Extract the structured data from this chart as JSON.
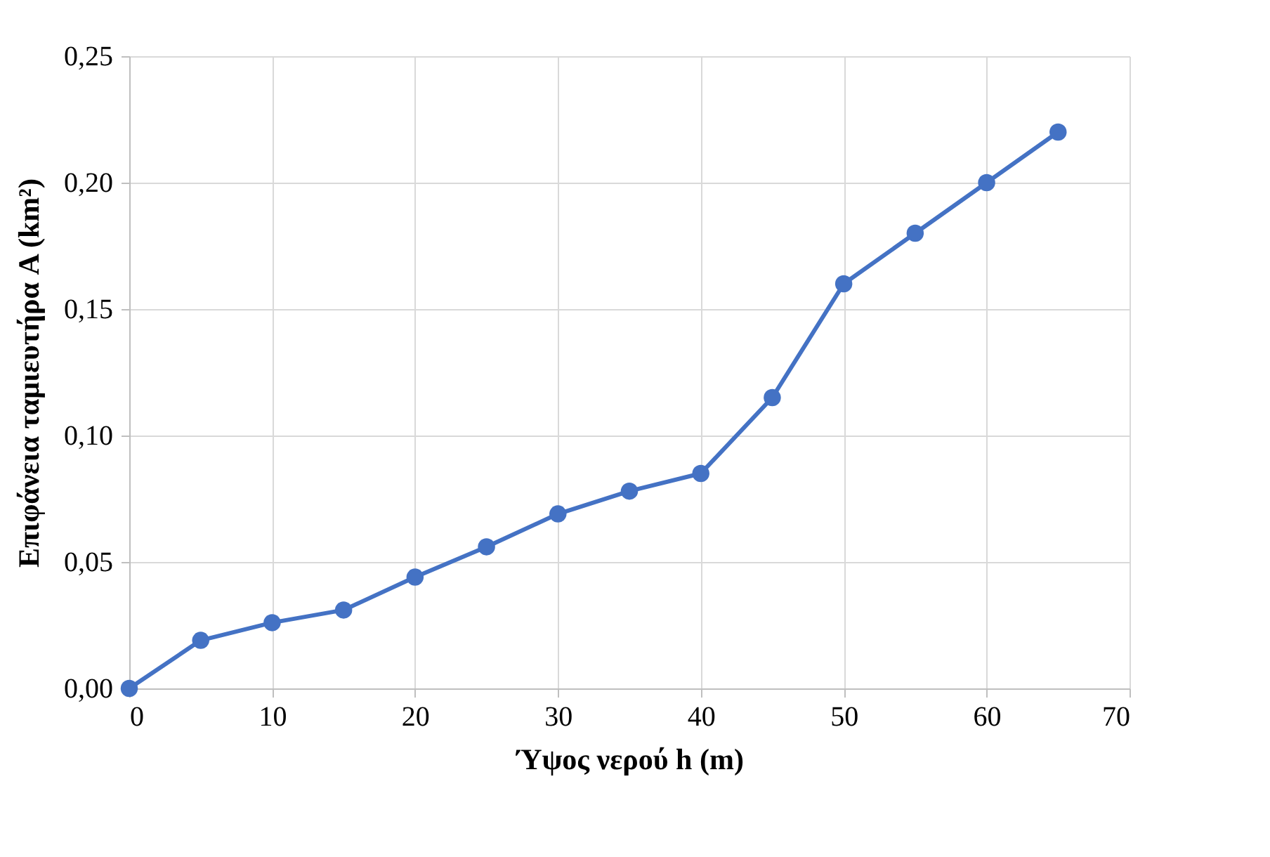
{
  "chart_data": {
    "type": "line",
    "xlabel": "Ύψος νερού h (m)",
    "ylabel": "Επιφάνεια ταμιευτήρα A (km²)",
    "x": [
      0,
      5,
      10,
      15,
      20,
      25,
      30,
      35,
      40,
      45,
      50,
      55,
      60,
      65
    ],
    "series": [
      {
        "color": "#4472c4",
        "values": [
          0,
          0.019,
          0.026,
          0.031,
          0.044,
          0.056,
          0.069,
          0.078,
          0.085,
          0.115,
          0.16,
          0.18,
          0.2,
          0.22
        ]
      }
    ],
    "xlim": [
      0,
      70
    ],
    "xticks": [
      0,
      10,
      20,
      30,
      40,
      50,
      60,
      70
    ],
    "ylim": [
      0,
      0.25
    ],
    "yticks": [
      {
        "value": 0,
        "label": "0,00"
      },
      {
        "value": 0.05,
        "label": "0,05"
      },
      {
        "value": 0.1,
        "label": "0,10"
      },
      {
        "value": 0.15,
        "label": "0,15"
      },
      {
        "value": 0.2,
        "label": "0,20"
      },
      {
        "value": 0.25,
        "label": "0,25"
      }
    ],
    "grid": true,
    "marker": "circle",
    "line_style": "solid"
  }
}
